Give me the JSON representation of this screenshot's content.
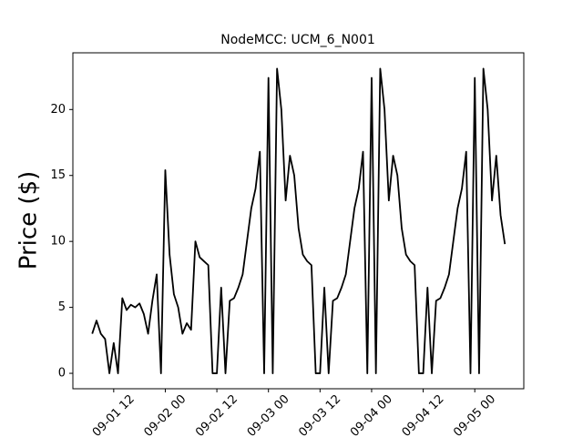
{
  "chart_data": {
    "type": "line",
    "title": "NodeMCC: UCM_6_N001",
    "ylabel": "Price ($)",
    "color": "#000000",
    "x": [
      "09-01 07",
      "09-01 08",
      "09-01 09",
      "09-01 10",
      "09-01 11",
      "09-01 12",
      "09-01 13",
      "09-01 14",
      "09-01 15",
      "09-01 16",
      "09-01 17",
      "09-01 18",
      "09-01 19",
      "09-01 20",
      "09-01 21",
      "09-01 22",
      "09-01 23",
      "09-02 00",
      "09-02 01",
      "09-02 02",
      "09-02 03",
      "09-02 04",
      "09-02 05",
      "09-02 06",
      "09-02 07",
      "09-02 08",
      "09-02 09",
      "09-02 10",
      "09-02 11",
      "09-02 12",
      "09-02 13",
      "09-02 14",
      "09-02 15",
      "09-02 16",
      "09-02 17",
      "09-02 18",
      "09-02 19",
      "09-02 20",
      "09-02 21",
      "09-02 22",
      "09-02 23",
      "09-03 00",
      "09-03 01",
      "09-03 02",
      "09-03 03",
      "09-03 04",
      "09-03 05",
      "09-03 06",
      "09-03 07",
      "09-03 08",
      "09-03 09",
      "09-03 10",
      "09-03 11",
      "09-03 12",
      "09-03 13",
      "09-03 14",
      "09-03 15",
      "09-03 16",
      "09-03 17",
      "09-03 18",
      "09-03 19",
      "09-03 20",
      "09-03 21",
      "09-03 22",
      "09-03 23",
      "09-04 00",
      "09-04 01",
      "09-04 02",
      "09-04 03",
      "09-04 04",
      "09-04 05",
      "09-04 06",
      "09-04 07",
      "09-04 08",
      "09-04 09",
      "09-04 10",
      "09-04 11",
      "09-04 12",
      "09-04 13",
      "09-04 14",
      "09-04 15",
      "09-04 16",
      "09-04 17",
      "09-04 18",
      "09-04 19",
      "09-04 20",
      "09-04 21",
      "09-04 22",
      "09-04 23",
      "09-05 00",
      "09-05 01",
      "09-05 02",
      "09-05 03",
      "09-05 04",
      "09-05 05",
      "09-05 06",
      "09-05 07"
    ],
    "values": [
      3.0,
      4.0,
      3.0,
      2.6,
      0,
      2.3,
      0,
      5.7,
      4.8,
      5.2,
      5.0,
      5.3,
      4.5,
      3.0,
      5.5,
      7.5,
      0,
      15.4,
      9.0,
      6.0,
      5.0,
      3.0,
      3.8,
      3.3,
      10.0,
      8.8,
      8.5,
      8.2,
      0,
      0,
      6.5,
      0,
      5.5,
      5.7,
      6.5,
      7.5,
      10.0,
      12.5,
      14.0,
      16.8,
      0,
      22.4,
      0,
      23.1,
      20.0,
      13.1,
      16.5,
      15.0,
      11.0,
      9.0,
      8.5,
      8.2,
      0,
      0,
      6.5,
      0,
      5.5,
      5.7,
      6.5,
      7.5,
      10.0,
      12.5,
      14.0,
      16.8,
      0,
      22.4,
      0,
      23.1,
      20.0,
      13.1,
      16.5,
      15.0,
      11.0,
      9.0,
      8.5,
      8.2,
      0,
      0,
      6.5,
      0,
      5.5,
      5.7,
      6.5,
      7.5,
      10.0,
      12.5,
      14.0,
      16.8,
      0,
      22.4,
      0,
      23.1,
      20.0,
      13.1,
      16.5,
      12.0,
      9.8
    ],
    "xlim": [
      "09-01 02:30",
      "09-05 11:24"
    ],
    "xticks": [
      "09-01 12",
      "09-02 00",
      "09-02 12",
      "09-03 00",
      "09-03 12",
      "09-04 00",
      "09-04 12",
      "09-05 00"
    ],
    "ylim": [
      -1.17,
      24.3
    ],
    "yticks": [
      0,
      5,
      10,
      15,
      20
    ]
  }
}
